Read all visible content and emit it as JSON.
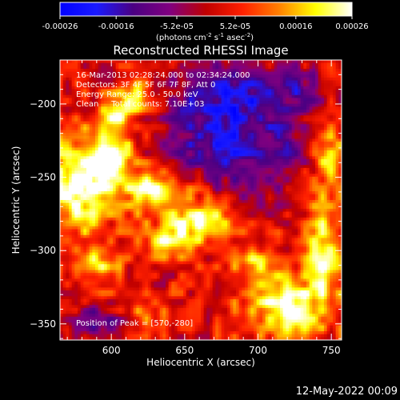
{
  "chart_data": {
    "type": "heatmap",
    "title": "Reconstructed RHESSI Image",
    "xlabel": "Heliocentric X (arcsec)",
    "ylabel": "Heliocentric Y (arcsec)",
    "xlim": [
      565,
      757
    ],
    "ylim": [
      -361,
      -170
    ],
    "x_ticks": [
      600,
      650,
      700,
      750
    ],
    "y_ticks": [
      -350,
      -300,
      -250,
      -200
    ],
    "colorbar": {
      "min": -0.00026,
      "max": 0.00026,
      "tick_values": [
        -0.00026,
        -0.00016,
        -5.2e-05,
        5.2e-05,
        0.00016,
        0.00026
      ],
      "tick_labels": [
        "-0.00026",
        "-0.00016",
        "-5.2e-05",
        "5.2e-05",
        "0.00016",
        "0.00026"
      ],
      "unit_parts": [
        "(photons cm",
        "-2",
        " s",
        "-1",
        " asec",
        "-2",
        ")"
      ],
      "colors": [
        "#0000ff",
        "#1a1aff",
        "#4b0082",
        "#800080",
        "#c00000",
        "#ff2000",
        "#ff8000",
        "#ffff00",
        "#ffffff"
      ]
    },
    "info_lines": [
      "16-Mar-2013 02:28:24.000 to 02:34:24.000",
      "Detectors: 3F 4F 5F 6F 7F 8F, Att 0",
      "Energy Range: 25.0 - 50.0 keV",
      "Clean     Total counts: 7.10E+03"
    ],
    "peak_label": "Position of Peak = [570,-280]",
    "footer_date": "12-May-2022 00:09",
    "hot_regions": [
      {
        "x": 578,
        "y": -255,
        "amp": 0.00026,
        "sx": 16,
        "sy": 22
      },
      {
        "x": 600,
        "y": -235,
        "amp": 0.00022,
        "sx": 10,
        "sy": 12
      },
      {
        "x": 605,
        "y": -205,
        "amp": 0.00018,
        "sx": 8,
        "sy": 10
      },
      {
        "x": 620,
        "y": -195,
        "amp": 0.00014,
        "sx": 8,
        "sy": 8
      },
      {
        "x": 630,
        "y": -260,
        "amp": 0.00022,
        "sx": 14,
        "sy": 10
      },
      {
        "x": 660,
        "y": -280,
        "amp": 0.0002,
        "sx": 16,
        "sy": 10
      },
      {
        "x": 640,
        "y": -295,
        "amp": 0.00016,
        "sx": 12,
        "sy": 8
      },
      {
        "x": 590,
        "y": -310,
        "amp": 0.00014,
        "sx": 12,
        "sy": 10
      },
      {
        "x": 720,
        "y": -340,
        "amp": 0.00022,
        "sx": 20,
        "sy": 14
      },
      {
        "x": 745,
        "y": -300,
        "amp": 0.0002,
        "sx": 10,
        "sy": 22
      },
      {
        "x": 748,
        "y": -235,
        "amp": 0.00016,
        "sx": 8,
        "sy": 18
      },
      {
        "x": 700,
        "y": -310,
        "amp": 0.00014,
        "sx": 12,
        "sy": 8
      },
      {
        "x": 625,
        "y": -345,
        "amp": 0.0001,
        "sx": 12,
        "sy": 8
      }
    ],
    "cold_regions": [
      {
        "x": 680,
        "y": -195,
        "amp": -0.0002,
        "sx": 30,
        "sy": 16
      },
      {
        "x": 700,
        "y": -235,
        "amp": -0.00016,
        "sx": 24,
        "sy": 20
      },
      {
        "x": 660,
        "y": -230,
        "amp": -0.00012,
        "sx": 18,
        "sy": 14
      },
      {
        "x": 590,
        "y": -350,
        "amp": -0.00014,
        "sx": 16,
        "sy": 8
      },
      {
        "x": 730,
        "y": -190,
        "amp": -0.0001,
        "sx": 12,
        "sy": 10
      }
    ]
  }
}
